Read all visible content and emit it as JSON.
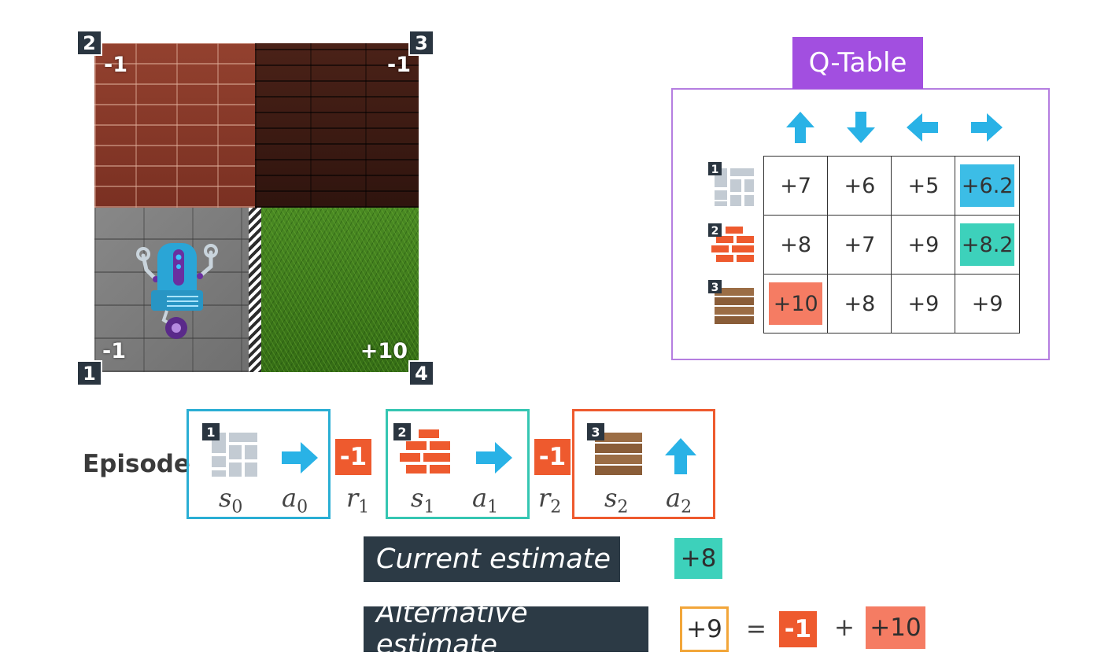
{
  "grid_world": {
    "corners": [
      "1",
      "2",
      "3",
      "4"
    ],
    "rewards": {
      "state_1": "-1",
      "state_2": "-1",
      "state_3": "-1",
      "state_4": "+10"
    }
  },
  "q_table": {
    "title": "Q-Table",
    "actions": [
      "up-arrow-icon",
      "down-arrow-icon",
      "left-arrow-icon",
      "right-arrow-icon"
    ],
    "rows": [
      {
        "state": "1",
        "values": [
          "+7",
          "+6",
          "+5",
          "+6.2"
        ]
      },
      {
        "state": "2",
        "values": [
          "+8",
          "+7",
          "+9",
          "+8.2"
        ]
      },
      {
        "state": "3",
        "values": [
          "+10",
          "+8",
          "+9",
          "+9"
        ]
      }
    ],
    "highlight_colors": {
      "blue": "#3cbde6",
      "teal": "#3dd1bb",
      "salmon": "#f57c63"
    }
  },
  "episode": {
    "label": "Episode",
    "steps": [
      {
        "state_num": "1",
        "state_sym": "s",
        "state_sub": "0",
        "action_sym": "a",
        "action_sub": "0",
        "box_color": "#2aaed4"
      },
      {
        "state_num": "2",
        "state_sym": "s",
        "state_sub": "1",
        "action_sym": "a",
        "action_sub": "1",
        "box_color": "#35c6b2"
      },
      {
        "state_num": "3",
        "state_sym": "s",
        "state_sub": "2",
        "action_sym": "a",
        "action_sub": "2",
        "box_color": "#ee5a2e"
      }
    ],
    "rewards": [
      {
        "value": "-1",
        "sym": "r",
        "sub": "1"
      },
      {
        "value": "-1",
        "sym": "r",
        "sub": "2"
      }
    ]
  },
  "estimates": {
    "current": {
      "label": "Current estimate",
      "value": "+8"
    },
    "alternative": {
      "label": "Alternative estimate",
      "value": "+9",
      "equals": "=",
      "reward": "-1",
      "plus": "+",
      "future": "+10"
    }
  }
}
